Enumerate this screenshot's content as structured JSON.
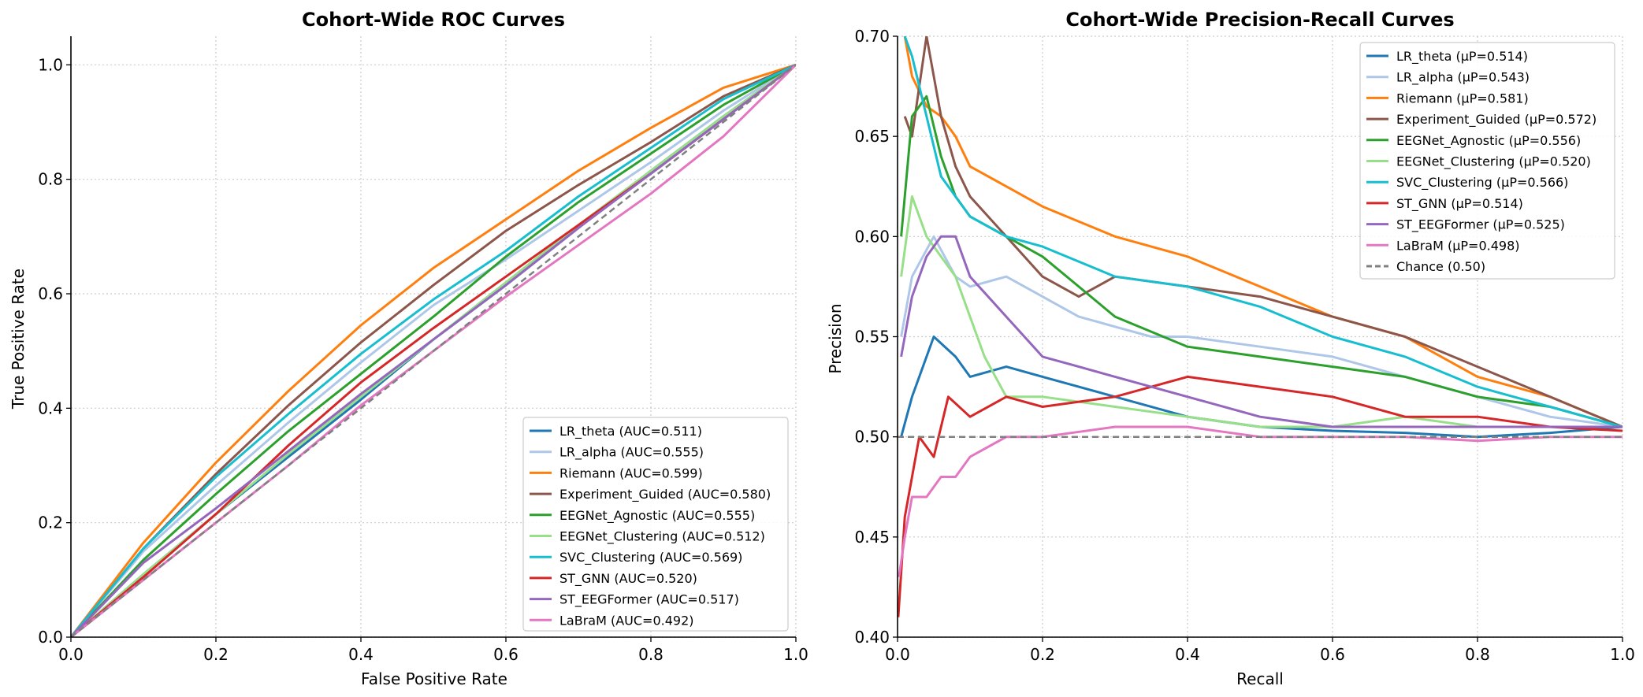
{
  "figure": {
    "background": "#ffffff"
  },
  "chart_data": [
    {
      "type": "line",
      "title": "Cohort-Wide ROC Curves",
      "xlabel": "False Positive Rate",
      "ylabel": "True Positive Rate",
      "xlim": [
        0,
        1.0
      ],
      "ylim": [
        0,
        1.05
      ],
      "xticks": [
        "0.0",
        "0.2",
        "0.4",
        "0.6",
        "0.8",
        "1.0"
      ],
      "yticks": [
        "0.0",
        "0.2",
        "0.4",
        "0.6",
        "0.8",
        "1.0"
      ],
      "grid": true,
      "legend_position": "lower-right",
      "series": [
        {
          "name": "LR_theta (AUC=0.511)",
          "color": "#1f77b4",
          "x": [
            0,
            0.1,
            0.2,
            0.3,
            0.4,
            0.5,
            0.6,
            0.7,
            0.8,
            0.9,
            1.0
          ],
          "y": [
            0,
            0.11,
            0.215,
            0.315,
            0.415,
            0.52,
            0.615,
            0.715,
            0.815,
            0.91,
            1.0
          ]
        },
        {
          "name": "LR_alpha (AUC=0.555)",
          "color": "#aec7e8",
          "x": [
            0,
            0.1,
            0.2,
            0.3,
            0.4,
            0.5,
            0.6,
            0.7,
            0.8,
            0.9,
            1.0
          ],
          "y": [
            0,
            0.15,
            0.265,
            0.375,
            0.48,
            0.58,
            0.66,
            0.745,
            0.83,
            0.92,
            1.0
          ]
        },
        {
          "name": "Riemann (AUC=0.599)",
          "color": "#ff7f0e",
          "x": [
            0,
            0.1,
            0.2,
            0.3,
            0.4,
            0.5,
            0.6,
            0.7,
            0.8,
            0.9,
            1.0
          ],
          "y": [
            0,
            0.165,
            0.305,
            0.43,
            0.545,
            0.645,
            0.73,
            0.815,
            0.89,
            0.96,
            1.0
          ]
        },
        {
          "name": "Experiment_Guided (AUC=0.580)",
          "color": "#8c564b",
          "x": [
            0,
            0.1,
            0.2,
            0.3,
            0.4,
            0.5,
            0.6,
            0.7,
            0.8,
            0.9,
            1.0
          ],
          "y": [
            0,
            0.155,
            0.285,
            0.405,
            0.515,
            0.615,
            0.71,
            0.79,
            0.865,
            0.945,
            1.0
          ]
        },
        {
          "name": "EEGNet_Agnostic (AUC=0.555)",
          "color": "#2ca02c",
          "x": [
            0,
            0.1,
            0.2,
            0.3,
            0.4,
            0.5,
            0.6,
            0.7,
            0.8,
            0.9,
            1.0
          ],
          "y": [
            0,
            0.135,
            0.25,
            0.36,
            0.46,
            0.56,
            0.665,
            0.76,
            0.845,
            0.93,
            1.0
          ]
        },
        {
          "name": "EEGNet_Clustering (AUC=0.512)",
          "color": "#98df8a",
          "x": [
            0,
            0.1,
            0.2,
            0.3,
            0.4,
            0.5,
            0.6,
            0.7,
            0.8,
            0.9,
            1.0
          ],
          "y": [
            0,
            0.11,
            0.215,
            0.32,
            0.42,
            0.52,
            0.62,
            0.72,
            0.815,
            0.91,
            1.0
          ]
        },
        {
          "name": "SVC_Clustering (AUC=0.569)",
          "color": "#17becf",
          "x": [
            0,
            0.1,
            0.2,
            0.3,
            0.4,
            0.5,
            0.6,
            0.7,
            0.8,
            0.9,
            1.0
          ],
          "y": [
            0,
            0.155,
            0.28,
            0.39,
            0.495,
            0.59,
            0.675,
            0.77,
            0.855,
            0.94,
            1.0
          ]
        },
        {
          "name": "ST_GNN (AUC=0.520)",
          "color": "#d62728",
          "x": [
            0,
            0.1,
            0.2,
            0.3,
            0.4,
            0.5,
            0.6,
            0.7,
            0.8,
            0.9,
            1.0
          ],
          "y": [
            0,
            0.105,
            0.215,
            0.335,
            0.445,
            0.54,
            0.63,
            0.72,
            0.81,
            0.905,
            1.0
          ]
        },
        {
          "name": "ST_EEGFormer (AUC=0.517)",
          "color": "#9467bd",
          "x": [
            0,
            0.1,
            0.2,
            0.3,
            0.4,
            0.5,
            0.6,
            0.7,
            0.8,
            0.9,
            1.0
          ],
          "y": [
            0,
            0.13,
            0.225,
            0.325,
            0.425,
            0.52,
            0.615,
            0.715,
            0.81,
            0.905,
            1.0
          ]
        },
        {
          "name": "LaBraM (AUC=0.492)",
          "color": "#e377c2",
          "x": [
            0,
            0.1,
            0.2,
            0.3,
            0.4,
            0.5,
            0.6,
            0.7,
            0.8,
            0.9,
            1.0
          ],
          "y": [
            0,
            0.1,
            0.2,
            0.3,
            0.405,
            0.5,
            0.595,
            0.685,
            0.775,
            0.875,
            1.0
          ]
        },
        {
          "name": "",
          "color": "#808080",
          "dashed": true,
          "x": [
            0,
            1.0
          ],
          "y": [
            0,
            1.0
          ]
        }
      ]
    },
    {
      "type": "line",
      "title": "Cohort-Wide Precision-Recall Curves",
      "xlabel": "Recall",
      "ylabel": "Precision",
      "xlim": [
        0,
        1.0
      ],
      "ylim": [
        0.4,
        0.7
      ],
      "xticks": [
        "0.0",
        "0.2",
        "0.4",
        "0.6",
        "0.8",
        "1.0"
      ],
      "yticks": [
        "0.40",
        "0.45",
        "0.50",
        "0.55",
        "0.60",
        "0.65",
        "0.70"
      ],
      "grid": true,
      "legend_position": "upper-right",
      "series": [
        {
          "name": "LR_theta (μP=0.514)",
          "color": "#1f77b4",
          "x": [
            0.005,
            0.02,
            0.05,
            0.08,
            0.1,
            0.15,
            0.2,
            0.3,
            0.4,
            0.5,
            0.6,
            0.7,
            0.8,
            0.9,
            1.0
          ],
          "y": [
            0.5,
            0.52,
            0.55,
            0.54,
            0.53,
            0.535,
            0.53,
            0.52,
            0.51,
            0.505,
            0.503,
            0.502,
            0.5,
            0.502,
            0.505
          ]
        },
        {
          "name": "LR_alpha (μP=0.543)",
          "color": "#aec7e8",
          "x": [
            0.005,
            0.02,
            0.05,
            0.08,
            0.1,
            0.15,
            0.2,
            0.25,
            0.3,
            0.35,
            0.4,
            0.5,
            0.6,
            0.7,
            0.8,
            0.9,
            1.0
          ],
          "y": [
            0.55,
            0.58,
            0.6,
            0.58,
            0.575,
            0.58,
            0.57,
            0.56,
            0.555,
            0.55,
            0.55,
            0.545,
            0.54,
            0.53,
            0.52,
            0.51,
            0.505
          ]
        },
        {
          "name": "Riemann (μP=0.581)",
          "color": "#ff7f0e",
          "x": [
            0.01,
            0.02,
            0.04,
            0.06,
            0.08,
            0.1,
            0.15,
            0.2,
            0.3,
            0.4,
            0.5,
            0.6,
            0.7,
            0.8,
            0.9,
            1.0
          ],
          "y": [
            0.7,
            0.68,
            0.665,
            0.66,
            0.65,
            0.635,
            0.625,
            0.615,
            0.6,
            0.59,
            0.575,
            0.56,
            0.55,
            0.53,
            0.52,
            0.505
          ]
        },
        {
          "name": "Experiment_Guided (μP=0.572)",
          "color": "#8c564b",
          "x": [
            0.01,
            0.02,
            0.04,
            0.06,
            0.08,
            0.1,
            0.15,
            0.2,
            0.25,
            0.3,
            0.4,
            0.5,
            0.6,
            0.7,
            0.8,
            0.9,
            1.0
          ],
          "y": [
            0.66,
            0.65,
            0.7,
            0.66,
            0.635,
            0.62,
            0.6,
            0.58,
            0.57,
            0.58,
            0.575,
            0.57,
            0.56,
            0.55,
            0.535,
            0.52,
            0.505
          ]
        },
        {
          "name": "EEGNet_Agnostic (μP=0.556)",
          "color": "#2ca02c",
          "x": [
            0.005,
            0.02,
            0.04,
            0.06,
            0.08,
            0.1,
            0.15,
            0.2,
            0.25,
            0.3,
            0.4,
            0.5,
            0.6,
            0.7,
            0.8,
            0.9,
            1.0
          ],
          "y": [
            0.6,
            0.66,
            0.67,
            0.64,
            0.62,
            0.61,
            0.6,
            0.59,
            0.575,
            0.56,
            0.545,
            0.54,
            0.535,
            0.53,
            0.52,
            0.515,
            0.505
          ]
        },
        {
          "name": "EEGNet_Clustering (μP=0.520)",
          "color": "#98df8a",
          "x": [
            0.005,
            0.02,
            0.04,
            0.06,
            0.08,
            0.1,
            0.12,
            0.15,
            0.2,
            0.3,
            0.4,
            0.5,
            0.6,
            0.7,
            0.8,
            0.9,
            1.0
          ],
          "y": [
            0.58,
            0.62,
            0.6,
            0.59,
            0.58,
            0.56,
            0.54,
            0.52,
            0.52,
            0.515,
            0.51,
            0.505,
            0.505,
            0.51,
            0.505,
            0.505,
            0.505
          ]
        },
        {
          "name": "SVC_Clustering (μP=0.566)",
          "color": "#17becf",
          "x": [
            0.01,
            0.02,
            0.04,
            0.06,
            0.08,
            0.1,
            0.15,
            0.2,
            0.3,
            0.4,
            0.5,
            0.6,
            0.7,
            0.8,
            0.9,
            1.0
          ],
          "y": [
            0.7,
            0.69,
            0.66,
            0.63,
            0.62,
            0.61,
            0.6,
            0.595,
            0.58,
            0.575,
            0.565,
            0.55,
            0.54,
            0.525,
            0.515,
            0.505
          ]
        },
        {
          "name": "ST_GNN (μP=0.514)",
          "color": "#d62728",
          "x": [
            0.001,
            0.01,
            0.02,
            0.03,
            0.05,
            0.07,
            0.1,
            0.15,
            0.2,
            0.3,
            0.4,
            0.5,
            0.6,
            0.7,
            0.8,
            0.9,
            1.0
          ],
          "y": [
            0.41,
            0.46,
            0.48,
            0.5,
            0.49,
            0.52,
            0.51,
            0.52,
            0.515,
            0.52,
            0.53,
            0.525,
            0.52,
            0.51,
            0.51,
            0.505,
            0.503
          ]
        },
        {
          "name": "ST_EEGFormer (μP=0.525)",
          "color": "#9467bd",
          "x": [
            0.005,
            0.02,
            0.04,
            0.06,
            0.08,
            0.1,
            0.15,
            0.2,
            0.25,
            0.3,
            0.4,
            0.5,
            0.6,
            0.7,
            0.8,
            0.9,
            1.0
          ],
          "y": [
            0.54,
            0.57,
            0.59,
            0.6,
            0.6,
            0.58,
            0.56,
            0.54,
            0.535,
            0.53,
            0.52,
            0.51,
            0.505,
            0.505,
            0.505,
            0.505,
            0.505
          ]
        },
        {
          "name": "LaBraM (μP=0.498)",
          "color": "#e377c2",
          "x": [
            0.002,
            0.01,
            0.02,
            0.04,
            0.06,
            0.08,
            0.1,
            0.15,
            0.2,
            0.3,
            0.4,
            0.5,
            0.6,
            0.7,
            0.8,
            0.9,
            1.0
          ],
          "y": [
            0.43,
            0.45,
            0.47,
            0.47,
            0.48,
            0.48,
            0.49,
            0.5,
            0.5,
            0.505,
            0.505,
            0.5,
            0.5,
            0.5,
            0.498,
            0.5,
            0.5
          ]
        },
        {
          "name": "Chance (0.50)",
          "color": "#808080",
          "dashed": true,
          "x": [
            0,
            1.0
          ],
          "y": [
            0.5,
            0.5
          ]
        }
      ]
    }
  ]
}
